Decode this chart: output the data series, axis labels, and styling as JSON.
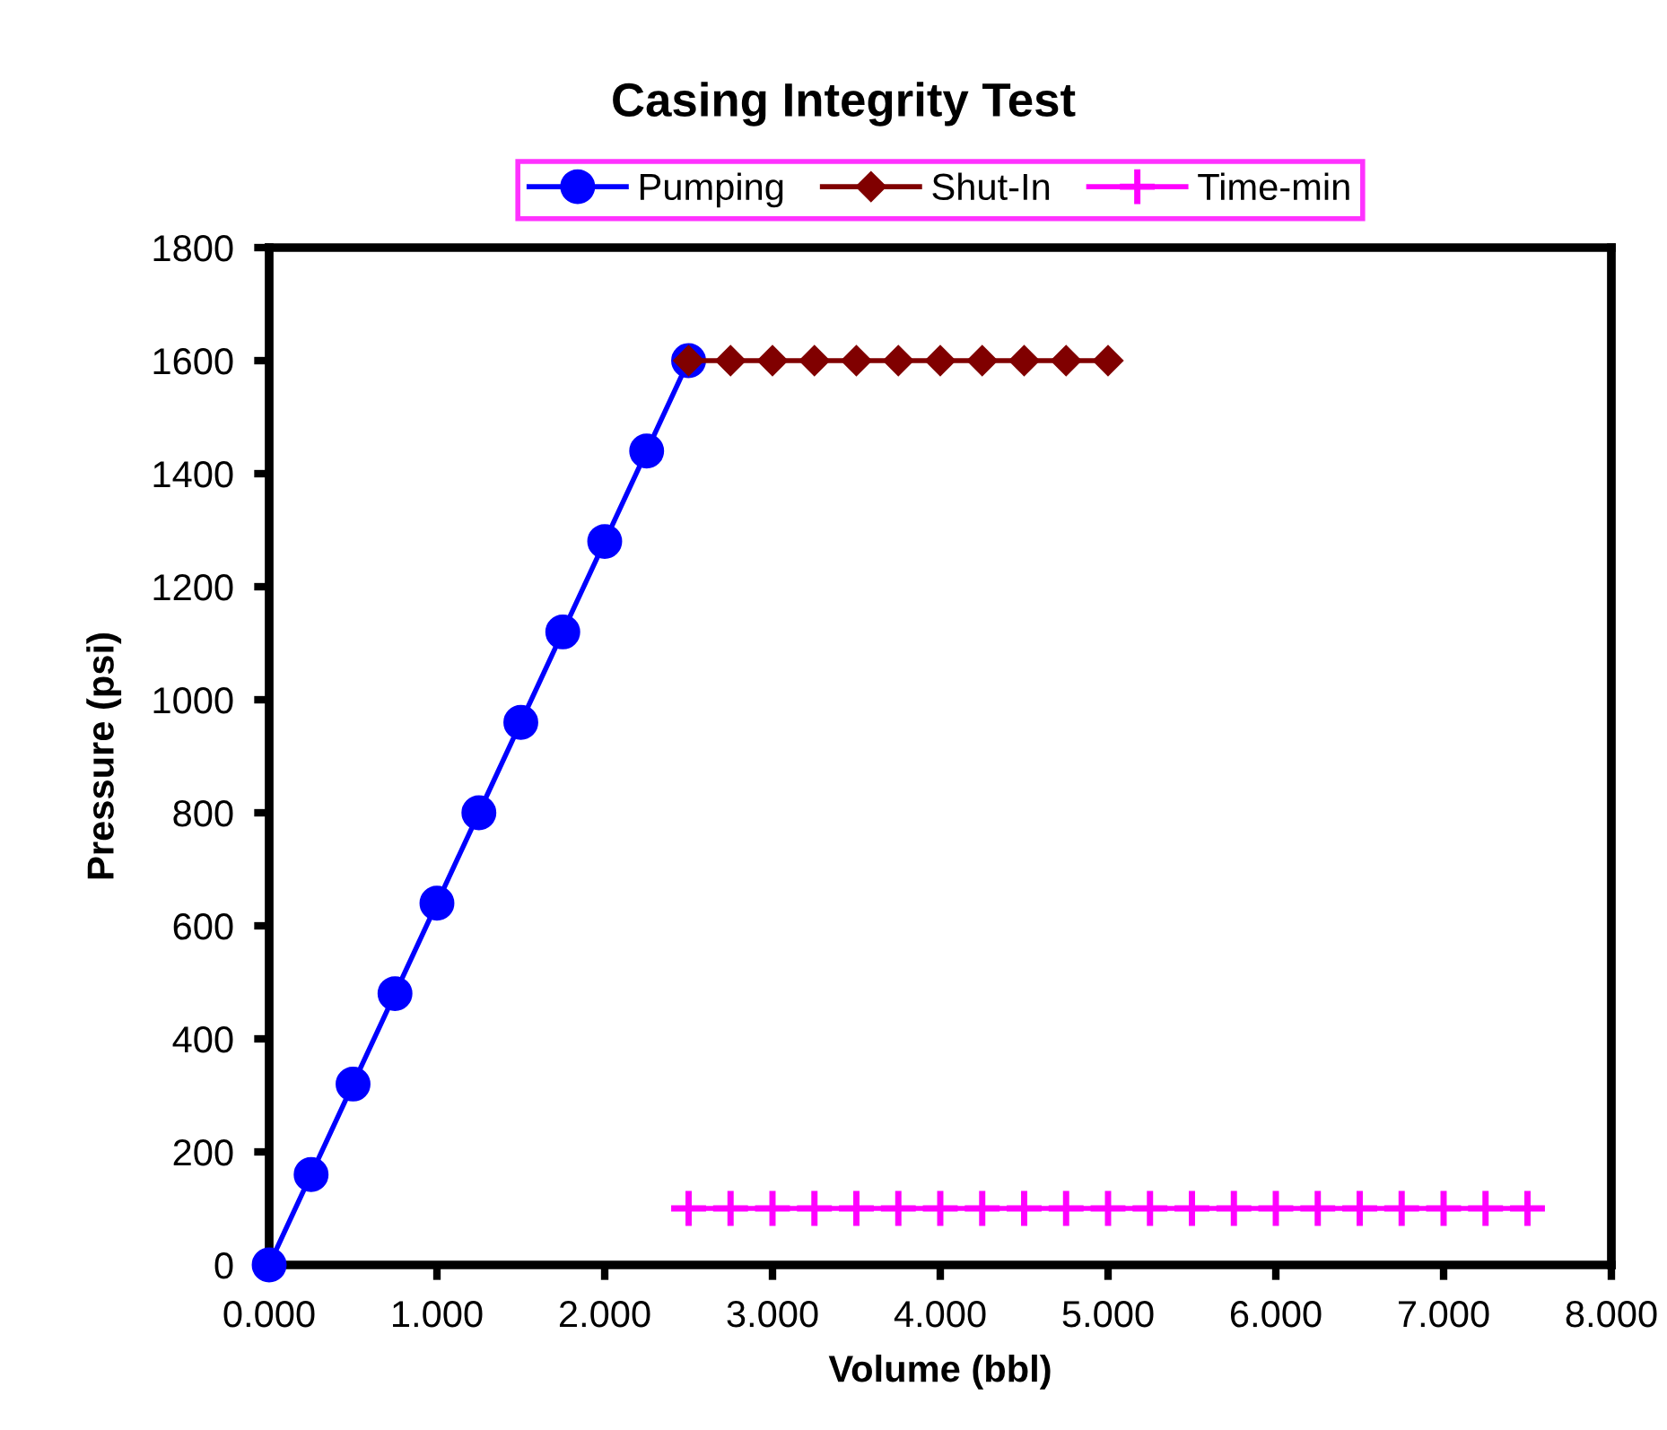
{
  "chart_data": {
    "type": "line",
    "title": "Casing Integrity Test",
    "xlabel": "Volume (bbl)",
    "ylabel": "Pressure (psi)",
    "xlim": [
      0,
      8
    ],
    "ylim": [
      0,
      1800
    ],
    "xticks": [
      {
        "value": 0,
        "label": "0.000"
      },
      {
        "value": 1,
        "label": "1.000"
      },
      {
        "value": 2,
        "label": "2.000"
      },
      {
        "value": 3,
        "label": "3.000"
      },
      {
        "value": 4,
        "label": "4.000"
      },
      {
        "value": 5,
        "label": "5.000"
      },
      {
        "value": 6,
        "label": "6.000"
      },
      {
        "value": 7,
        "label": "7.000"
      },
      {
        "value": 8,
        "label": "8.000"
      }
    ],
    "yticks": [
      0,
      200,
      400,
      600,
      800,
      1000,
      1200,
      1400,
      1600,
      1800
    ],
    "grid": false,
    "legend": "top",
    "line_style": "solid",
    "series": [
      {
        "name": "Pumping",
        "color": "#0000ff",
        "marker": "circle",
        "x": [
          0,
          0.25,
          0.5,
          0.75,
          1.0,
          1.25,
          1.5,
          1.75,
          2.0,
          2.25,
          2.5
        ],
        "values": [
          0,
          160,
          320,
          480,
          640,
          800,
          960,
          1120,
          1280,
          1440,
          1600
        ]
      },
      {
        "name": "Shut-In",
        "color": "#800000",
        "marker": "diamond",
        "x": [
          2.5,
          2.75,
          3.0,
          3.25,
          3.5,
          3.75,
          4.0,
          4.25,
          4.5,
          4.75,
          5.0
        ],
        "values": [
          1600,
          1600,
          1600,
          1600,
          1600,
          1600,
          1600,
          1600,
          1600,
          1600,
          1600
        ]
      },
      {
        "name": "Time-min",
        "color": "#ff00ff",
        "marker": "cross",
        "x": [
          2.5,
          2.75,
          3.0,
          3.25,
          3.5,
          3.75,
          4.0,
          4.25,
          4.5,
          4.75,
          5.0,
          5.25,
          5.5,
          5.75,
          6.0,
          6.25,
          6.5,
          6.75,
          7.0,
          7.25,
          7.5
        ],
        "values": [
          100,
          100,
          100,
          100,
          100,
          100,
          100,
          100,
          100,
          100,
          100,
          100,
          100,
          100,
          100,
          100,
          100,
          100,
          100,
          100,
          100
        ]
      }
    ]
  }
}
